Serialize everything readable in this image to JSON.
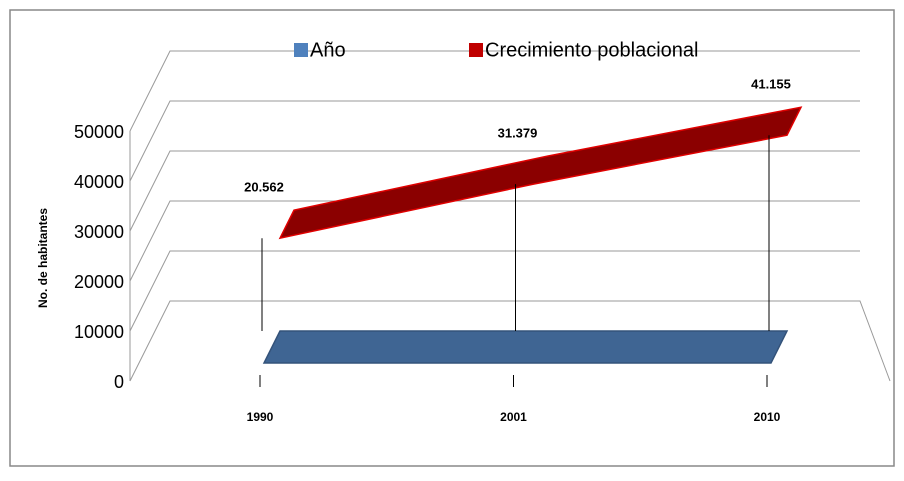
{
  "chart_data": {
    "type": "line3d",
    "categories": [
      "1990",
      "2001",
      "2010"
    ],
    "series": [
      {
        "name": "Año",
        "color": "#3f6593",
        "values": [
          1990,
          2001,
          2010
        ]
      },
      {
        "name": "Crecimiento poblacional",
        "color": "#8b0000",
        "values": [
          20562,
          31379,
          41155
        ],
        "value_labels": [
          "20.562",
          "31.379",
          "41.155"
        ]
      }
    ],
    "ylabel": "No. de habitantes",
    "ylim": [
      0,
      50000
    ],
    "yticks": [
      0,
      10000,
      20000,
      30000,
      40000,
      50000
    ],
    "grid": true
  }
}
